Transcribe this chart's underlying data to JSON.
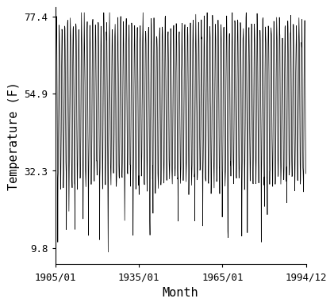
{
  "title": "",
  "xlabel": "Month",
  "ylabel": "Temperature (F)",
  "x_start_year": 1905,
  "x_start_month": 1,
  "x_end_year": 1994,
  "x_end_month": 12,
  "yticks": [
    9.8,
    32.3,
    54.9,
    77.4
  ],
  "ylim": [
    5.0,
    80.0
  ],
  "xtick_labels": [
    "1905/01",
    "1935/01",
    "1965/01",
    "1994/12"
  ],
  "xtick_years": [
    1905,
    1935,
    1965,
    1994
  ],
  "xtick_months": [
    1,
    1,
    1,
    12
  ],
  "line_color": "#000000",
  "line_width": 0.5,
  "bg_color": "#ffffff",
  "font_size": 9,
  "label_font_size": 11
}
